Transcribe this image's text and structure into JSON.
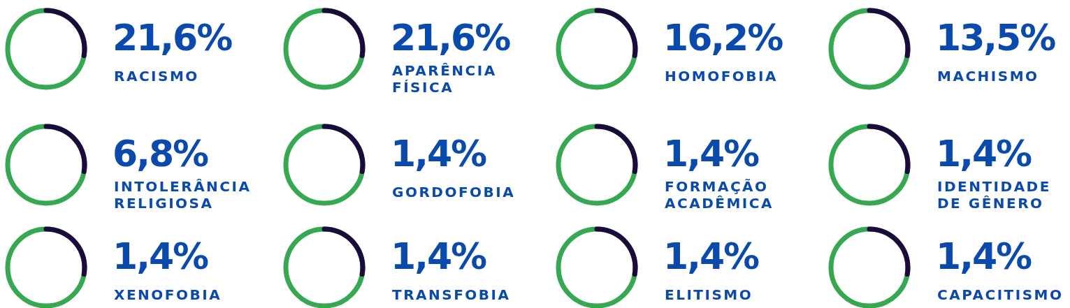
{
  "chart_data": {
    "type": "other",
    "categories": [
      "RACISMO",
      "APARÊNCIA FÍSICA",
      "HOMOFOBIA",
      "MACHISMO",
      "INTOLERÂNCIA RELIGIOSA",
      "GORDOFOBIA",
      "FORMAÇÃO ACADÊMICA",
      "IDENTIDADE DE GÊNERO",
      "XENOFOBIA",
      "TRANSFOBIA",
      "ELITISMO",
      "CAPACITISMO"
    ],
    "values": [
      21.6,
      21.6,
      16.2,
      13.5,
      6.8,
      1.4,
      1.4,
      1.4,
      1.4,
      1.4,
      1.4,
      1.4
    ],
    "value_labels": [
      "21,6%",
      "21,6%",
      "16,2%",
      "13,5%",
      "6,8%",
      "1,4%",
      "1,4%",
      "1,4%",
      "1,4%",
      "1,4%",
      "1,4%",
      "1,4%"
    ]
  }
}
